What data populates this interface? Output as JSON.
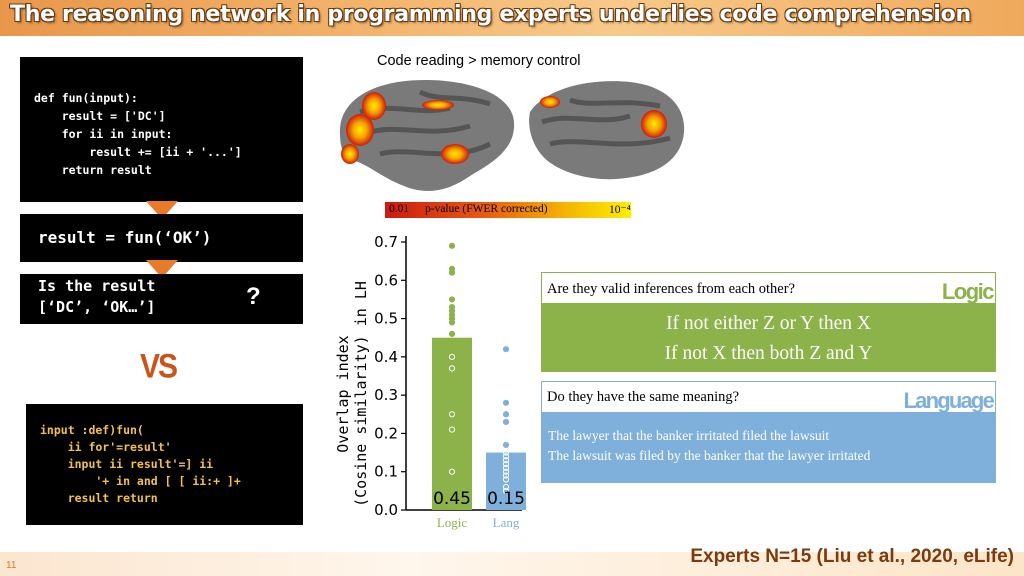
{
  "header": {
    "title": "The reasoning network in programming experts underlies code comprehension"
  },
  "code": {
    "block1": "def fun(input):\n    result = ['DC']\n    for ii in input:\n        result += [ii + '...']\n    return result",
    "block2": "result = fun(‘OK’)",
    "block3": "Is the result\n[‘DC’, ‘OK…’]",
    "question_mark": "?",
    "vs": "VS",
    "block4": "input :def)fun(\n    ii for'=result'\n    input ii result'=] ii\n        '+ in and [ [ ii:+ ]+\n    result return"
  },
  "brain": {
    "title": "Code reading > memory control",
    "colorbar_min": "0.01",
    "colorbar_label": "p-value (FWER corrected)",
    "colorbar_max": "10⁻⁴",
    "colorbar_colors": [
      "#cc1a10",
      "#ffef00"
    ]
  },
  "chart_data": {
    "type": "bar",
    "categories": [
      "Logic",
      "Lang"
    ],
    "values": [
      0.45,
      0.15
    ],
    "value_labels": [
      "0.45",
      "0.15"
    ],
    "ylabel_line1": "Overlap index",
    "ylabel_line2": "(Cosine similarity) in LH",
    "ylim": [
      0.0,
      0.7
    ],
    "yticks": [
      0.0,
      0.1,
      0.2,
      0.3,
      0.4,
      0.5,
      0.6,
      0.7
    ],
    "ytick_labels": [
      "0.0",
      "0.1",
      "0.2",
      "0.3",
      "0.4",
      "0.5",
      "0.6",
      "0.7"
    ],
    "colors": [
      "#8cb24a",
      "#7fb0dc"
    ],
    "points": [
      [
        0.69,
        0.63,
        0.62,
        0.55,
        0.53,
        0.52,
        0.51,
        0.5,
        0.49,
        0.46,
        0.4,
        0.37,
        0.25,
        0.21,
        0.1
      ],
      [
        0.42,
        0.28,
        0.25,
        0.23,
        0.17,
        0.15,
        0.14,
        0.13,
        0.12,
        0.11,
        0.1,
        0.09,
        0.08,
        0.06,
        0.05
      ]
    ]
  },
  "panels": {
    "logic": {
      "question": "Are they valid inferences from each other?",
      "tag": "Logic",
      "line1": "If not either Z or Y then X",
      "line2": "If not X then both Z and Y",
      "color": "#8cb24a"
    },
    "language": {
      "question": "Do they have the same meaning?",
      "tag": "Language",
      "line1": "The lawyer that the banker irritated filed the lawsuit",
      "line2": "The lawsuit was filed by the banker that the lawyer irritated",
      "color": "#7fb0dc"
    }
  },
  "footer": {
    "slide_number": "11",
    "citation": "Experts N=15 (Liu et al., 2020, eLife)"
  }
}
